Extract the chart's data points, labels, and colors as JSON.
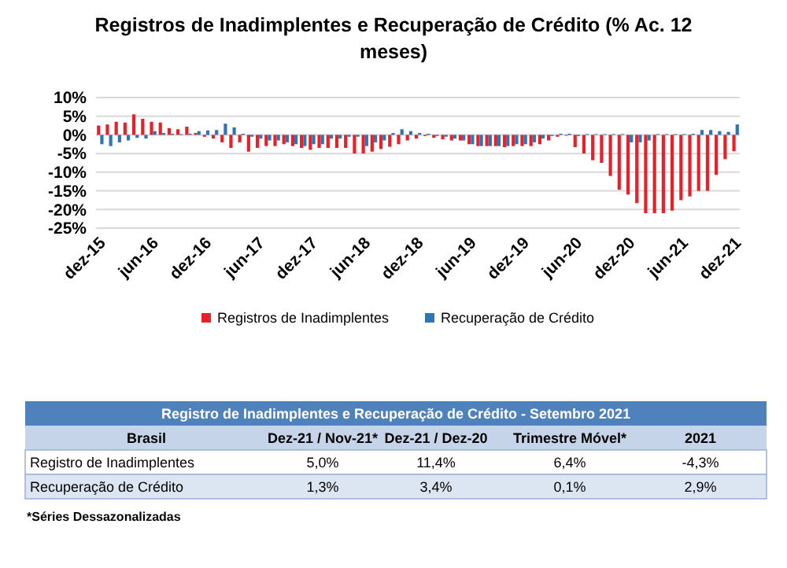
{
  "chart_data": [
    {
      "type": "bar",
      "title": "Registros de Inadimplentes e Recuperação de Crédito (% Ac. 12 meses)",
      "categories": [
        "dez-15",
        null,
        null,
        null,
        null,
        null,
        "jun-16",
        null,
        null,
        null,
        null,
        null,
        "dez-16",
        null,
        null,
        null,
        null,
        null,
        "jun-17",
        null,
        null,
        null,
        null,
        null,
        "dez-17",
        null,
        null,
        null,
        null,
        null,
        "jun-18",
        null,
        null,
        null,
        null,
        null,
        "dez-18",
        null,
        null,
        null,
        null,
        null,
        "jun-19",
        null,
        null,
        null,
        null,
        null,
        "dez-19",
        null,
        null,
        null,
        null,
        null,
        "jun-20",
        null,
        null,
        null,
        null,
        null,
        "dez-20",
        null,
        null,
        null,
        null,
        null,
        "jun-21",
        null,
        null,
        null,
        null,
        null,
        "dez-21"
      ],
      "series": [
        {
          "name": "Registros de Inadimplentes",
          "color": "#e8202a",
          "values": [
            2.5,
            2.8,
            3.5,
            3.3,
            5.5,
            4.3,
            3.5,
            3.3,
            1.8,
            1.5,
            2.2,
            0.5,
            -0.5,
            -1,
            -2,
            -3.5,
            -2,
            -4.5,
            -3.5,
            -3,
            -3,
            -2.5,
            -3,
            -3.5,
            -4,
            -3.5,
            -3.5,
            -3.5,
            -3.5,
            -5,
            -5,
            -4.5,
            -3.8,
            -3.2,
            -2.5,
            -1.5,
            -1,
            -0.3,
            -0.8,
            -1.2,
            -1.5,
            -1.5,
            -2.5,
            -3,
            -3,
            -3,
            -3.3,
            -3,
            -3,
            -3,
            -2.5,
            -1.5,
            -0.5,
            -0.2,
            -3.3,
            -5,
            -6.8,
            -7.5,
            -11,
            -14.7,
            -16,
            -18.3,
            -21,
            -21,
            -21,
            -20.3,
            -17.5,
            -16.5,
            -15,
            -15,
            -10.7,
            -6.5,
            -4.4
          ]
        },
        {
          "name": "Recuperação de Crédito",
          "color": "#2e75b6",
          "values": [
            -2.5,
            -3,
            -2,
            -1.5,
            -0.8,
            -1,
            1,
            0.5,
            0.3,
            0.2,
            0.3,
            1,
            1.2,
            1.3,
            3,
            2,
            0.3,
            -0.5,
            -1,
            -1.5,
            -1.5,
            -2,
            -2.5,
            -3,
            -2.5,
            -2.5,
            -1,
            -1,
            -0.5,
            -0.5,
            -3,
            -2,
            -1.5,
            0.5,
            1.5,
            1,
            0.5,
            0.3,
            -0.3,
            -0.5,
            -1,
            -1.5,
            -2.5,
            -3,
            -3,
            -3,
            -3,
            -2.5,
            -2.5,
            -2,
            -1,
            -0.3,
            0.3,
            0.3,
            -0.3,
            0.2,
            0.2,
            0.2,
            0.2,
            0.2,
            -2,
            -2,
            -1.5,
            0.2,
            0.2,
            0.2,
            0.2,
            0.3,
            1.3,
            1.3,
            1,
            0.8,
            2.8
          ]
        }
      ],
      "ylim": [
        -25,
        10
      ],
      "yticks": [
        {
          "value": -25,
          "label": "-25%"
        },
        {
          "value": -20,
          "label": "-20%"
        },
        {
          "value": -15,
          "label": "-15%"
        },
        {
          "value": -10,
          "label": "-10%"
        },
        {
          "value": -5,
          "label": "-5%"
        },
        {
          "value": 0,
          "label": "0%"
        },
        {
          "value": 5,
          "label": "5%"
        },
        {
          "value": 10,
          "label": "10%"
        }
      ],
      "grid": "y",
      "legend": "bottom"
    },
    {
      "type": "other",
      "title": "Registro de Inadimplentes e Recuperação de Crédito - Setembro 2021",
      "categories": [
        "Brasil",
        "Dez-21 / Nov-21*",
        "Dez-21 / Dez-20",
        "Trimestre Móvel*",
        "2021"
      ],
      "y_categories": [
        "Registro de Inadimplentes",
        "Recuperação de Crédito"
      ],
      "cell_labels": [
        [
          "5,0%",
          "11,4%",
          "6,4%",
          "-4,3%"
        ],
        [
          "1,3%",
          "3,4%",
          "0,1%",
          "2,9%"
        ]
      ],
      "annotations": [
        "*Séries Dessazonalizadas"
      ]
    }
  ]
}
